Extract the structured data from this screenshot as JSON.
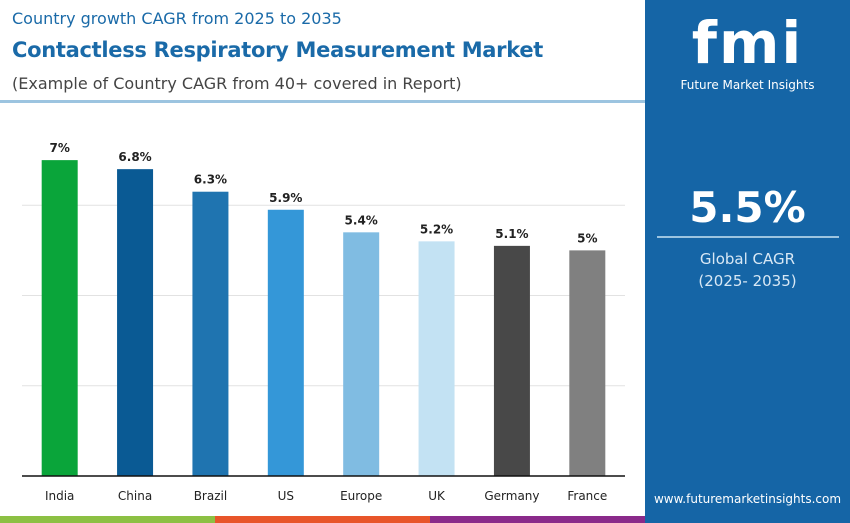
{
  "header": {
    "subtitle": "Country growth CAGR from 2025 to 2035",
    "title": "Contactless Respiratory Measurement Market",
    "note": "(Example of Country CAGR from 40+ covered in Report)"
  },
  "brand": {
    "logo_text": "fmi",
    "name": "Future Market Insights",
    "url": "www.futuremarketinsights.com",
    "panel_color": "#1565a6"
  },
  "stat": {
    "value": "5.5%",
    "label": "Global CAGR",
    "period": "(2025- 2035)"
  },
  "chart_data": {
    "type": "bar",
    "categories": [
      "India",
      "China",
      "Brazil",
      "US",
      "Europe",
      "UK",
      "Germany",
      "France"
    ],
    "values": [
      7,
      6.8,
      6.3,
      5.9,
      5.4,
      5.2,
      5.1,
      5
    ],
    "data_labels": [
      "7%",
      "6.8%",
      "6.3%",
      "5.9%",
      "5.4%",
      "5.2%",
      "5.1%",
      "5%"
    ],
    "colors": [
      "#0aa53a",
      "#0a5a94",
      "#1f74b0",
      "#3497d8",
      "#80bce2",
      "#c3e2f3",
      "#484848",
      "#808080"
    ],
    "ylim": [
      0,
      8
    ],
    "grid": true,
    "title": "",
    "xlabel": "",
    "ylabel": ""
  },
  "footer_stripes": [
    "#8cc043",
    "#e8552a",
    "#8a2a8a"
  ]
}
